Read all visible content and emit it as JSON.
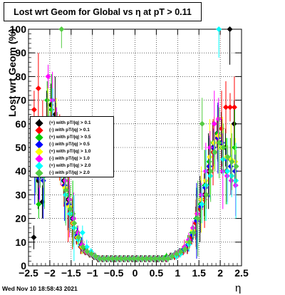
{
  "footer": {
    "datestamp": "Wed Nov 10 18:58:43 2021"
  },
  "chart_data": {
    "type": "scatter",
    "title": "Lost wrt Geom for Global vs η at pT > 0.11",
    "xlabel": "η",
    "ylabel": "Lost wrt Geom (%)",
    "xlim": [
      -2.5,
      2.5
    ],
    "ylim": [
      0,
      100
    ],
    "xticks": [
      "−2.5",
      "−2",
      "−1.5",
      "−1",
      "−0.5",
      "0",
      "0.5",
      "1",
      "1.5",
      "2",
      "2.5"
    ],
    "xtick_values": [
      -2.5,
      -2,
      -1.5,
      -1,
      -0.5,
      0,
      0.5,
      1,
      1.5,
      2,
      2.5
    ],
    "yticks": [
      "0",
      "10",
      "20",
      "30",
      "40",
      "50",
      "60",
      "70",
      "80",
      "90",
      "100"
    ],
    "ytick_values": [
      0,
      10,
      20,
      30,
      40,
      50,
      60,
      70,
      80,
      90,
      100
    ],
    "grid": true,
    "legend_position": "left-middle",
    "x": [
      -2.35,
      -2.25,
      -2.15,
      -2.05,
      -1.95,
      -1.85,
      -1.75,
      -1.65,
      -1.55,
      -1.45,
      -1.35,
      -1.25,
      -1.15,
      -1.05,
      -0.95,
      -0.85,
      -0.75,
      -0.65,
      -0.55,
      -0.45,
      -0.35,
      -0.25,
      -0.15,
      -0.05,
      0.05,
      0.15,
      0.25,
      0.35,
      0.45,
      0.55,
      0.65,
      0.75,
      0.85,
      0.95,
      1.05,
      1.15,
      1.25,
      1.35,
      1.45,
      1.55,
      1.65,
      1.75,
      1.85,
      1.95,
      2.05,
      2.15,
      2.25,
      2.35
    ],
    "series": [
      {
        "name": "(+) with pT/|q| > 0.1",
        "color": "#000000",
        "marker": "circle",
        "values": [
          12,
          36,
          27,
          60,
          68,
          64,
          52,
          36,
          28,
          20,
          12,
          8,
          6,
          5,
          4,
          3,
          3,
          3,
          3,
          3,
          3,
          3,
          3,
          3,
          3,
          3,
          3,
          3,
          3,
          3,
          3,
          3,
          4,
          4,
          5,
          6,
          8,
          12,
          18,
          24,
          30,
          40,
          50,
          56,
          52,
          50,
          100,
          60
        ]
      },
      {
        "name": "(-) with pT/|q| > 0.1",
        "color": "#ff0000",
        "marker": "circle",
        "values": [
          66,
          75,
          60,
          62,
          56,
          60,
          50,
          34,
          26,
          18,
          12,
          8,
          6,
          5,
          4,
          3,
          3,
          3,
          3,
          3,
          3,
          3,
          3,
          3,
          3,
          3,
          3,
          3,
          3,
          3,
          3,
          3,
          4,
          4,
          5,
          6,
          8,
          12,
          18,
          24,
          28,
          42,
          48,
          54,
          58,
          67,
          67,
          67
        ]
      },
      {
        "name": "(+) with pT/|q| > 0.5",
        "color": "#00cc00",
        "marker": "circle",
        "values": [
          50,
          26,
          38,
          70,
          66,
          54,
          50,
          38,
          30,
          22,
          14,
          9,
          7,
          5,
          4,
          3,
          3,
          3,
          3,
          3,
          3,
          3,
          3,
          3,
          3,
          3,
          3,
          3,
          3,
          3,
          3,
          4,
          4,
          5,
          6,
          7,
          10,
          14,
          20,
          26,
          34,
          44,
          52,
          56,
          50,
          40,
          45,
          50
        ]
      },
      {
        "name": "(-) with pT/|q| > 0.5",
        "color": "#0000ff",
        "marker": "circle",
        "values": [
          40,
          37,
          36,
          62,
          58,
          56,
          48,
          34,
          26,
          20,
          13,
          9,
          6,
          5,
          4,
          3,
          3,
          3,
          3,
          3,
          3,
          3,
          3,
          3,
          3,
          3,
          3,
          3,
          3,
          3,
          3,
          3,
          4,
          5,
          6,
          7,
          9,
          13,
          19,
          25,
          33,
          42,
          50,
          54,
          52,
          45,
          42,
          40
        ]
      },
      {
        "name": "(+) with pT/|q| > 1.0",
        "color": "#ffff00",
        "marker": "circle",
        "values": [
          55,
          45,
          40,
          62,
          60,
          55,
          45,
          33,
          25,
          18,
          12,
          8,
          6,
          5,
          4,
          3,
          3,
          3,
          3,
          3,
          3,
          3,
          3,
          3,
          3,
          3,
          3,
          3,
          3,
          3,
          3,
          3,
          4,
          5,
          6,
          8,
          10,
          15,
          22,
          28,
          36,
          46,
          52,
          55,
          50,
          46,
          45,
          44
        ]
      },
      {
        "name": "(-) with pT/|q| > 1.0",
        "color": "#ff00ff",
        "marker": "circle",
        "values": [
          45,
          42,
          40,
          80,
          70,
          60,
          48,
          36,
          28,
          20,
          14,
          9,
          6,
          5,
          4,
          3,
          3,
          3,
          3,
          3,
          3,
          3,
          3,
          3,
          3,
          3,
          3,
          3,
          3,
          3,
          3,
          3,
          4,
          5,
          6,
          8,
          11,
          16,
          22,
          30,
          40,
          50,
          60,
          62,
          40,
          38,
          36,
          34
        ]
      },
      {
        "name": "(+) with pT/|q| > 2.0",
        "color": "#00ffff",
        "marker": "circle",
        "values": [
          42,
          40,
          38,
          56,
          60,
          50,
          40,
          30,
          22,
          16,
          11,
          14,
          8,
          6,
          4,
          3,
          3,
          3,
          3,
          3,
          3,
          3,
          3,
          3,
          3,
          3,
          3,
          3,
          3,
          3,
          3,
          3,
          4,
          4,
          5,
          7,
          9,
          14,
          20,
          26,
          34,
          38,
          48,
          100,
          45,
          40,
          38,
          36
        ]
      },
      {
        "name": "(-) with pT/|q| > 2.0",
        "color": "#55cc44",
        "marker": "circle",
        "values": [
          44,
          42,
          40,
          58,
          56,
          52,
          100,
          32,
          24,
          18,
          12,
          8,
          6,
          5,
          4,
          3,
          3,
          3,
          3,
          3,
          3,
          3,
          3,
          3,
          3,
          3,
          3,
          3,
          3,
          3,
          3,
          3,
          4,
          5,
          6,
          7,
          10,
          14,
          20,
          60,
          30,
          40,
          48,
          52,
          50,
          46,
          44,
          42
        ]
      }
    ]
  }
}
